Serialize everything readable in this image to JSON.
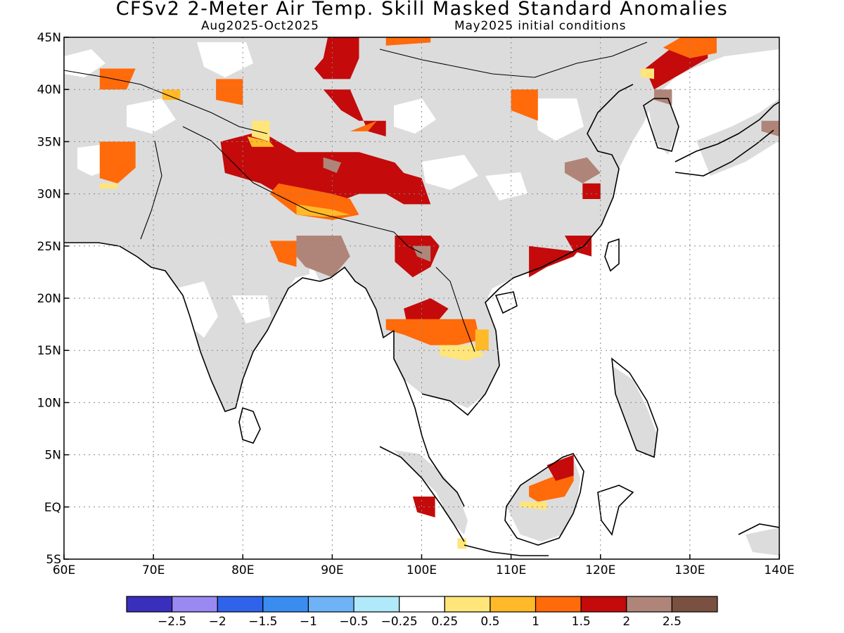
{
  "title": "CFSv2 2-Meter Air Temp. Skill Masked Standard Anomalies",
  "subtitle_left": "Aug2025-Oct2025",
  "subtitle_right": "May2025 initial conditions",
  "map": {
    "lon_range": [
      60,
      140
    ],
    "lat_range": [
      -5,
      45
    ],
    "lon_ticks": [
      {
        "value": 60,
        "label": "60E"
      },
      {
        "value": 70,
        "label": "70E"
      },
      {
        "value": 80,
        "label": "80E"
      },
      {
        "value": 90,
        "label": "90E"
      },
      {
        "value": 100,
        "label": "100E"
      },
      {
        "value": 110,
        "label": "110E"
      },
      {
        "value": 120,
        "label": "120E"
      },
      {
        "value": 130,
        "label": "130E"
      },
      {
        "value": 140,
        "label": "140E"
      }
    ],
    "lat_ticks": [
      {
        "value": 45,
        "label": "45N"
      },
      {
        "value": 40,
        "label": "40N"
      },
      {
        "value": 35,
        "label": "35N"
      },
      {
        "value": 30,
        "label": "30N"
      },
      {
        "value": 25,
        "label": "25N"
      },
      {
        "value": 20,
        "label": "20N"
      },
      {
        "value": 15,
        "label": "15N"
      },
      {
        "value": 10,
        "label": "10N"
      },
      {
        "value": 5,
        "label": "5N"
      },
      {
        "value": 0,
        "label": "EQ"
      },
      {
        "value": -5,
        "label": "5S"
      }
    ],
    "masked_color": "#dcdcdc",
    "anomaly_regions": [
      {
        "name": "western-china-tibet",
        "level": 2,
        "poly": [
          [
            77.5,
            35
          ],
          [
            82,
            36
          ],
          [
            86,
            34
          ],
          [
            93,
            34
          ],
          [
            97,
            33
          ],
          [
            98,
            32
          ],
          [
            100,
            31.5
          ],
          [
            101,
            29
          ],
          [
            98,
            29
          ],
          [
            96,
            30
          ],
          [
            93,
            30
          ],
          [
            90,
            29
          ],
          [
            86,
            29
          ],
          [
            82,
            31
          ],
          [
            78,
            32
          ]
        ]
      },
      {
        "name": "tibet-south",
        "level": 1.5,
        "poly": [
          [
            84,
            31
          ],
          [
            90,
            30
          ],
          [
            92,
            29.5
          ],
          [
            93,
            28
          ],
          [
            90,
            27.5
          ],
          [
            86,
            28
          ],
          [
            83,
            30
          ]
        ]
      },
      {
        "name": "tibet-south-inner",
        "level": 1,
        "poly": [
          [
            86,
            29
          ],
          [
            90,
            28.5
          ],
          [
            92,
            28
          ],
          [
            89,
            27.8
          ],
          [
            86,
            28
          ]
        ]
      },
      {
        "name": "tarim-north",
        "level": 2,
        "poly": [
          [
            89,
            40
          ],
          [
            92,
            40
          ],
          [
            93,
            38
          ],
          [
            94,
            36
          ],
          [
            96,
            35.5
          ],
          [
            96,
            37
          ],
          [
            93,
            37
          ],
          [
            91,
            38
          ],
          [
            90,
            39
          ]
        ]
      },
      {
        "name": "tarim-north-inner",
        "level": 1.5,
        "poly": [
          [
            92,
            36
          ],
          [
            95,
            37
          ],
          [
            94,
            36
          ]
        ]
      },
      {
        "name": "mongolia-strip",
        "level": 2,
        "poly": [
          [
            89.5,
            45
          ],
          [
            93,
            45
          ],
          [
            93,
            43
          ],
          [
            92,
            41
          ],
          [
            89,
            41
          ],
          [
            88,
            42
          ],
          [
            89,
            43
          ]
        ]
      },
      {
        "name": "mongolia-top",
        "level": 1.5,
        "poly": [
          [
            96,
            45
          ],
          [
            101,
            45
          ],
          [
            101,
            44.5
          ],
          [
            96,
            44.2
          ]
        ]
      },
      {
        "name": "tibet-west-yellow",
        "level": 0.5,
        "poly": [
          [
            81,
            37
          ],
          [
            83,
            37
          ],
          [
            83,
            35
          ],
          [
            81,
            35.5
          ]
        ]
      },
      {
        "name": "tibet-west-orange",
        "level": 1,
        "poly": [
          [
            80.5,
            35.5
          ],
          [
            83,
            35
          ],
          [
            83.5,
            34.5
          ],
          [
            81,
            34.5
          ]
        ]
      },
      {
        "name": "tibet-brown",
        "level": 2.5,
        "poly": [
          [
            89,
            33.5
          ],
          [
            91,
            33
          ],
          [
            90.5,
            32
          ],
          [
            89,
            32.5
          ]
        ]
      },
      {
        "name": "yunnan",
        "level": 2,
        "poly": [
          [
            97,
            26
          ],
          [
            101,
            26
          ],
          [
            102,
            25
          ],
          [
            101,
            23
          ],
          [
            99,
            22
          ],
          [
            97,
            23.5
          ]
        ]
      },
      {
        "name": "yunnan-brown",
        "level": 2.5,
        "poly": [
          [
            99,
            25
          ],
          [
            101,
            25
          ],
          [
            101,
            23.5
          ],
          [
            99.5,
            24
          ]
        ]
      },
      {
        "name": "indochina-north",
        "level": 2,
        "poly": [
          [
            98,
            19
          ],
          [
            101,
            20
          ],
          [
            103,
            19
          ],
          [
            101,
            17
          ],
          [
            98.5,
            17
          ]
        ]
      },
      {
        "name": "indochina-band",
        "level": 1.5,
        "poly": [
          [
            96,
            18
          ],
          [
            106,
            18
          ],
          [
            106.5,
            16
          ],
          [
            104,
            15.5
          ],
          [
            101,
            15.5
          ],
          [
            98,
            16.5
          ],
          [
            96,
            17
          ]
        ]
      },
      {
        "name": "indochina-yellow",
        "level": 0.5,
        "poly": [
          [
            102,
            15.5
          ],
          [
            106,
            15.5
          ],
          [
            107,
            14.5
          ],
          [
            105,
            14
          ],
          [
            102,
            14.5
          ]
        ]
      },
      {
        "name": "indochina-orange2",
        "level": 1,
        "poly": [
          [
            106,
            17
          ],
          [
            107.5,
            17
          ],
          [
            107.5,
            15
          ],
          [
            106,
            15
          ]
        ]
      },
      {
        "name": "bangladesh-brown",
        "level": 2.5,
        "poly": [
          [
            86,
            26
          ],
          [
            91,
            26
          ],
          [
            92,
            24
          ],
          [
            90,
            22
          ],
          [
            87,
            23
          ],
          [
            86,
            24
          ]
        ]
      },
      {
        "name": "bangladesh-orange",
        "level": 1.5,
        "poly": [
          [
            83,
            25.5
          ],
          [
            86,
            25.5
          ],
          [
            86,
            23
          ],
          [
            84,
            23.5
          ]
        ]
      },
      {
        "name": "pakistan-west",
        "level": 1.5,
        "poly": [
          [
            64,
            35
          ],
          [
            68,
            35
          ],
          [
            68,
            32.5
          ],
          [
            66,
            31
          ],
          [
            64,
            31.5
          ]
        ]
      },
      {
        "name": "pakistan-west-yellow",
        "level": 0.5,
        "poly": [
          [
            64,
            31
          ],
          [
            66,
            31
          ],
          [
            66,
            30.5
          ],
          [
            64,
            30.5
          ]
        ]
      },
      {
        "name": "central-asia-1",
        "level": 1.5,
        "poly": [
          [
            64,
            42
          ],
          [
            68,
            42
          ],
          [
            67,
            40
          ],
          [
            64,
            40
          ]
        ]
      },
      {
        "name": "central-asia-2",
        "level": 1,
        "poly": [
          [
            71,
            40
          ],
          [
            73,
            40
          ],
          [
            73,
            39
          ],
          [
            71,
            39
          ]
        ]
      },
      {
        "name": "central-asia-3",
        "level": 1.5,
        "poly": [
          [
            77,
            41
          ],
          [
            80,
            41
          ],
          [
            80,
            38.5
          ],
          [
            77,
            39
          ]
        ]
      },
      {
        "name": "china-north-small",
        "level": 1.5,
        "poly": [
          [
            110,
            40
          ],
          [
            113,
            40
          ],
          [
            113,
            37
          ],
          [
            110,
            38
          ]
        ]
      },
      {
        "name": "china-southeast",
        "level": 2,
        "poly": [
          [
            112,
            25
          ],
          [
            117,
            24.5
          ],
          [
            119,
            26
          ],
          [
            117,
            24
          ],
          [
            114,
            23
          ],
          [
            112,
            22
          ]
        ]
      },
      {
        "name": "china-southeast-2",
        "level": 2,
        "poly": [
          [
            116,
            26
          ],
          [
            119,
            26
          ],
          [
            119,
            24
          ],
          [
            117,
            24.5
          ]
        ]
      },
      {
        "name": "china-east-brown",
        "level": 2.5,
        "poly": [
          [
            116,
            33
          ],
          [
            118.5,
            33.5
          ],
          [
            120,
            32
          ],
          [
            118,
            31
          ],
          [
            116,
            32
          ]
        ]
      },
      {
        "name": "china-east-red",
        "level": 2,
        "poly": [
          [
            118,
            31
          ],
          [
            120,
            31
          ],
          [
            120,
            29.5
          ],
          [
            118,
            29.5
          ]
        ]
      },
      {
        "name": "manchuria",
        "level": 2,
        "poly": [
          [
            125,
            42
          ],
          [
            128,
            44
          ],
          [
            130,
            45
          ],
          [
            132,
            45
          ],
          [
            132,
            43
          ],
          [
            129,
            41.5
          ],
          [
            126,
            40
          ]
        ]
      },
      {
        "name": "manchuria-orange",
        "level": 1.5,
        "poly": [
          [
            127,
            44
          ],
          [
            130,
            45.5
          ],
          [
            133,
            45
          ],
          [
            133,
            43.5
          ],
          [
            130,
            43
          ]
        ]
      },
      {
        "name": "manchuria-brown",
        "level": 2.5,
        "poly": [
          [
            126,
            40
          ],
          [
            128,
            40
          ],
          [
            128,
            38.5
          ],
          [
            126,
            39
          ]
        ]
      },
      {
        "name": "manchuria-yellow",
        "level": 0.5,
        "poly": [
          [
            124.5,
            42
          ],
          [
            126,
            42
          ],
          [
            126,
            41
          ],
          [
            124.5,
            41.2
          ]
        ]
      },
      {
        "name": "japan-north-brown",
        "level": 2.5,
        "poly": [
          [
            138,
            37
          ],
          [
            140,
            37
          ],
          [
            140,
            35.5
          ],
          [
            138,
            36
          ]
        ]
      },
      {
        "name": "borneo",
        "level": 1.5,
        "poly": [
          [
            112,
            2
          ],
          [
            115,
            3
          ],
          [
            117,
            5
          ],
          [
            117,
            2.5
          ],
          [
            116,
            1
          ],
          [
            113,
            0.5
          ],
          [
            112,
            1
          ]
        ]
      },
      {
        "name": "borneo-red",
        "level": 2,
        "poly": [
          [
            114,
            4
          ],
          [
            117,
            5
          ],
          [
            117,
            3
          ],
          [
            115,
            2.5
          ]
        ]
      },
      {
        "name": "borneo-yellow",
        "level": 0.5,
        "poly": [
          [
            111,
            0.5
          ],
          [
            114,
            0.5
          ],
          [
            114,
            -0.3
          ],
          [
            111,
            0
          ]
        ]
      },
      {
        "name": "sumatra-red",
        "level": 2,
        "poly": [
          [
            99,
            1
          ],
          [
            101.5,
            1
          ],
          [
            101.5,
            -1
          ],
          [
            99.5,
            -0.5
          ]
        ]
      },
      {
        "name": "sumatra-south-yellow",
        "level": 0.5,
        "poly": [
          [
            104,
            -3
          ],
          [
            105,
            -3
          ],
          [
            105,
            -4
          ],
          [
            104,
            -4
          ]
        ]
      }
    ]
  },
  "colorbar": {
    "colors": [
      "#3a2fbc",
      "#9a89f2",
      "#2f63ea",
      "#3a8df0",
      "#6eb3f6",
      "#afe9fa",
      "#ffffff",
      "#ffe57a",
      "#ffb929",
      "#ff6a0a",
      "#c40a0a",
      "#b08579",
      "#7a5040"
    ],
    "labels": [
      "-2.5",
      "-2",
      "-1.5",
      "-1",
      "-0.5",
      "-0.25",
      "0.25",
      "0.5",
      "1",
      "1.5",
      "2",
      "2.5"
    ],
    "level_colors": {
      "0.5": "#ffe57a",
      "1": "#ffb929",
      "1.5": "#ff6a0a",
      "2": "#c40a0a",
      "2.5": "#b08579"
    }
  }
}
